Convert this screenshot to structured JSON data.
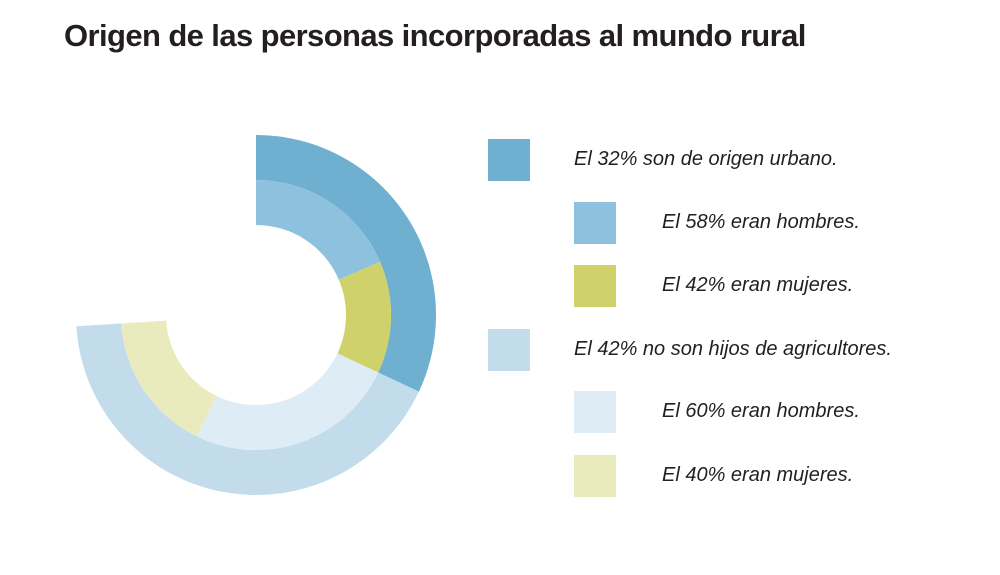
{
  "title": "Origen de las personas incorporadas al mundo rural",
  "chart_data": {
    "type": "pie",
    "subtype": "nested-donut",
    "series": [
      {
        "name": "outer",
        "slices": [
          {
            "label": "El 32% son de origen urbano.",
            "value": 32,
            "color": "#6fafcf"
          },
          {
            "label": "El 42% no son hijos de agricultores.",
            "value": 42,
            "color": "#c2dcec"
          }
        ]
      },
      {
        "name": "inner",
        "slices": [
          {
            "label": "El 58% eran hombres.",
            "value": 18.56,
            "share_of_parent": 58,
            "color": "#8ec1dd"
          },
          {
            "label": "El 42% eran mujeres.",
            "value": 13.44,
            "share_of_parent": 42,
            "color": "#cfd16a"
          },
          {
            "label": "El 60% eran hombres.",
            "value": 25.2,
            "share_of_parent": 60,
            "color": "#deedf5"
          },
          {
            "label": "El 40% eran mujeres.",
            "value": 16.8,
            "share_of_parent": 40,
            "color": "#e9ebbd"
          }
        ]
      }
    ]
  },
  "legend": [
    {
      "label": "El 32% son de origen urbano.",
      "color": "#6fafcf",
      "level": 0
    },
    {
      "label": "El 58% eran hombres.",
      "color": "#8ec1dd",
      "level": 1
    },
    {
      "label": "El 42% eran mujeres.",
      "color": "#cfd16a",
      "level": 1
    },
    {
      "label": "El 42% no son hijos de agricultores.",
      "color": "#c2dcec",
      "level": 0
    },
    {
      "label": "El 60% eran hombres.",
      "color": "#deedf5",
      "level": 1
    },
    {
      "label": "El 40% eran mujeres.",
      "color": "#e9ebbd",
      "level": 1
    }
  ]
}
